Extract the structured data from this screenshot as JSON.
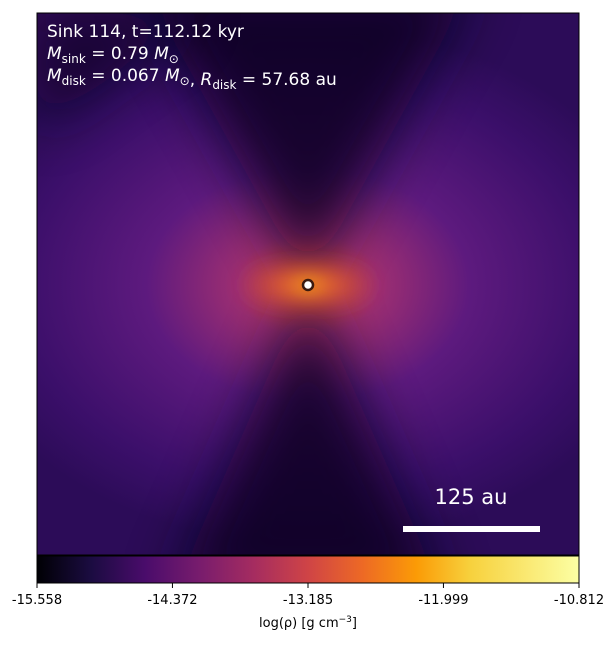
{
  "chart_data": {
    "type": "density-map",
    "sink_label": "Sink 114, t=112.12 kyr",
    "m_sink": {
      "symbol": "M",
      "sub": "sink",
      "text": " = 0.79 ",
      "unit": "M",
      "unit_sub": "⊙"
    },
    "m_disk": {
      "symbol": "M",
      "sub": "disk",
      "text": " = 0.067 ",
      "unit": "M",
      "unit_sub": "⊙",
      "sep": ", "
    },
    "r_disk": {
      "symbol": "R",
      "sub": "disk",
      "text": " = 57.68 au"
    },
    "scale_bar_label": "125 au",
    "colorbar": {
      "colormap": "inferno",
      "lim": [
        -15.558,
        -10.812
      ],
      "ticks": [
        -15.558,
        -14.372,
        -13.185,
        -11.999,
        -10.812
      ],
      "label": {
        "text": "log(ρ) [g cm",
        "sup": "−3",
        "end": "]"
      }
    }
  }
}
